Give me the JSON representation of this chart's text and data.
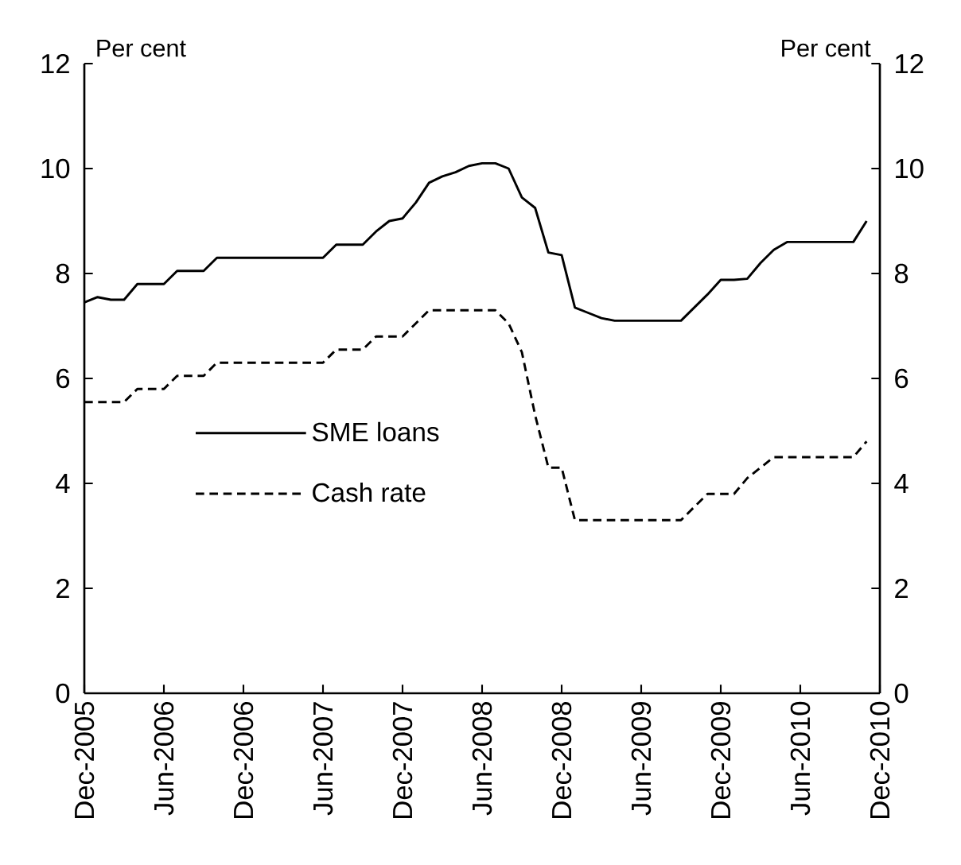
{
  "chart_data": {
    "type": "line",
    "annotations": [
      "Per cent",
      "Per cent"
    ],
    "x": [
      "2005-12",
      "2006-01",
      "2006-02",
      "2006-03",
      "2006-04",
      "2006-05",
      "2006-06",
      "2006-07",
      "2006-08",
      "2006-09",
      "2006-10",
      "2006-11",
      "2006-12",
      "2007-01",
      "2007-02",
      "2007-03",
      "2007-04",
      "2007-05",
      "2007-06",
      "2007-07",
      "2007-08",
      "2007-09",
      "2007-10",
      "2007-11",
      "2007-12",
      "2008-01",
      "2008-02",
      "2008-03",
      "2008-04",
      "2008-05",
      "2008-06",
      "2008-07",
      "2008-08",
      "2008-09",
      "2008-10",
      "2008-11",
      "2008-12",
      "2009-01",
      "2009-02",
      "2009-03",
      "2009-04",
      "2009-05",
      "2009-06",
      "2009-07",
      "2009-08",
      "2009-09",
      "2009-10",
      "2009-11",
      "2009-12",
      "2010-01",
      "2010-02",
      "2010-03",
      "2010-04",
      "2010-05",
      "2010-06",
      "2010-07",
      "2010-08",
      "2010-09",
      "2010-10",
      "2010-11"
    ],
    "series": [
      {
        "name": "SME loans",
        "color": "#000000",
        "line_style": "solid",
        "values": [
          7.45,
          7.55,
          7.5,
          7.5,
          7.8,
          7.8,
          7.8,
          8.05,
          8.05,
          8.05,
          8.3,
          8.3,
          8.3,
          8.3,
          8.3,
          8.3,
          8.3,
          8.3,
          8.3,
          8.55,
          8.55,
          8.55,
          8.8,
          9.0,
          9.05,
          9.35,
          9.73,
          9.85,
          9.93,
          10.05,
          10.1,
          10.1,
          10.0,
          9.45,
          9.25,
          8.4,
          8.35,
          7.35,
          7.25,
          7.15,
          7.1,
          7.1,
          7.1,
          7.1,
          7.1,
          7.1,
          7.35,
          7.6,
          7.88,
          7.88,
          7.9,
          8.2,
          8.45,
          8.6,
          8.6,
          8.6,
          8.6,
          8.6,
          8.6,
          9.0
        ]
      },
      {
        "name": "Cash rate",
        "color": "#000000",
        "line_style": "dashed",
        "values": [
          5.55,
          5.55,
          5.55,
          5.55,
          5.8,
          5.8,
          5.8,
          6.05,
          6.05,
          6.05,
          6.3,
          6.3,
          6.3,
          6.3,
          6.3,
          6.3,
          6.3,
          6.3,
          6.3,
          6.55,
          6.55,
          6.55,
          6.8,
          6.8,
          6.8,
          7.05,
          7.3,
          7.3,
          7.3,
          7.3,
          7.3,
          7.3,
          7.05,
          6.5,
          5.3,
          4.3,
          4.3,
          3.3,
          3.3,
          3.3,
          3.3,
          3.3,
          3.3,
          3.3,
          3.3,
          3.3,
          3.55,
          3.8,
          3.8,
          3.8,
          4.1,
          4.3,
          4.5,
          4.5,
          4.5,
          4.5,
          4.5,
          4.5,
          4.5,
          4.8
        ]
      }
    ],
    "xlim": [
      "2005-12",
      "2010-12"
    ],
    "xticks": [
      {
        "value": "2005-12",
        "label": "Dec-2005"
      },
      {
        "value": "2006-06",
        "label": "Jun-2006"
      },
      {
        "value": "2006-12",
        "label": "Dec-2006"
      },
      {
        "value": "2007-06",
        "label": "Jun-2007"
      },
      {
        "value": "2007-12",
        "label": "Dec-2007"
      },
      {
        "value": "2008-06",
        "label": "Jun-2008"
      },
      {
        "value": "2008-12",
        "label": "Dec-2008"
      },
      {
        "value": "2009-06",
        "label": "Jun-2009"
      },
      {
        "value": "2009-12",
        "label": "Dec-2009"
      },
      {
        "value": "2010-06",
        "label": "Jun-2010"
      },
      {
        "value": "2010-12",
        "label": "Dec-2010"
      }
    ],
    "ylim": [
      0,
      12
    ],
    "yticks": [
      0,
      2,
      4,
      6,
      8,
      10,
      12
    ],
    "y2lim": [
      0,
      12
    ],
    "y2ticks": [
      0,
      2,
      4,
      6,
      8,
      10,
      12
    ],
    "legend": "center",
    "grid": false,
    "marker": "none"
  }
}
